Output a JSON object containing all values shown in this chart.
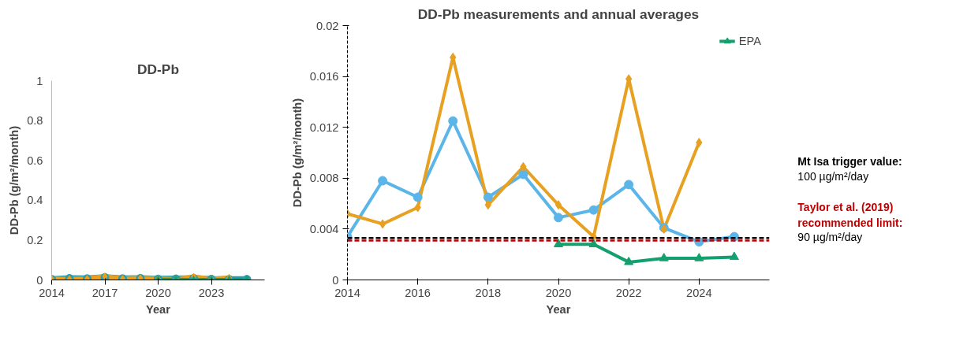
{
  "chart_data": [
    {
      "type": "line",
      "title": "DD-Pb",
      "xlabel": "Year",
      "ylabel": "DD-Pb (g/m²/month)",
      "xlim": [
        2014,
        2026
      ],
      "xticks": [
        2014,
        2017,
        2020,
        2023
      ],
      "ylim": [
        0,
        1
      ],
      "yticks": [
        0,
        0.2,
        0.4,
        0.6,
        0.8,
        1
      ],
      "grid": false,
      "legend": false,
      "series": [
        {
          "color": "#2a9bb0",
          "marker": "circle",
          "x": [
            2014,
            2015,
            2016,
            2017,
            2018,
            2019,
            2020,
            2021,
            2022,
            2023,
            2024,
            2025
          ],
          "values": [
            0.0034,
            0.0078,
            0.0065,
            0.0125,
            0.0065,
            0.0083,
            0.0049,
            0.0055,
            0.0075,
            0.0041,
            0.003,
            0.0034
          ]
        },
        {
          "color": "#e8a021",
          "marker": "diamond",
          "x": [
            2014,
            2015,
            2016,
            2017,
            2018,
            2019,
            2020,
            2021,
            2022,
            2023,
            2024
          ],
          "values": [
            0.0052,
            0.0044,
            0.0057,
            0.0175,
            0.0059,
            0.0089,
            0.0059,
            0.0034,
            0.0158,
            0.004,
            0.0108
          ]
        },
        {
          "color": "#14a06e",
          "marker": "triangle",
          "x": [
            2020,
            2021,
            2022,
            2023,
            2024,
            2025
          ],
          "values": [
            0.0028,
            0.0028,
            0.0014,
            0.0017,
            0.0017,
            0.0018
          ]
        }
      ]
    },
    {
      "type": "line",
      "title": "DD-Pb measurements and annual averages",
      "xlabel": "Year",
      "ylabel": "DD-Pb (g/m²/month)",
      "xlim": [
        2014,
        2026
      ],
      "xticks": [
        2014,
        2016,
        2018,
        2020,
        2022,
        2024
      ],
      "ylim": [
        0,
        0.02
      ],
      "yticks": [
        0,
        0.004,
        0.008,
        0.012,
        0.016,
        0.02
      ],
      "grid": false,
      "legend": "top right",
      "series": [
        {
          "color": "#5bb5e8",
          "marker": "circle",
          "x": [
            2014,
            2015,
            2016,
            2017,
            2018,
            2019,
            2020,
            2021,
            2022,
            2023,
            2024,
            2025
          ],
          "values": [
            0.0034,
            0.0078,
            0.0065,
            0.0125,
            0.0065,
            0.0083,
            0.0049,
            0.0055,
            0.0075,
            0.0041,
            0.003,
            0.0034
          ]
        },
        {
          "color": "#e8a021",
          "marker": "diamond",
          "x": [
            2014,
            2015,
            2016,
            2017,
            2018,
            2019,
            2020,
            2021,
            2022,
            2023,
            2024
          ],
          "values": [
            0.0052,
            0.0044,
            0.0057,
            0.0175,
            0.0059,
            0.0089,
            0.0059,
            0.0034,
            0.0158,
            0.004,
            0.0108
          ]
        },
        {
          "color": "#14a06e",
          "marker": "triangle",
          "name": "EPA",
          "x": [
            2020,
            2021,
            2022,
            2023,
            2024,
            2025
          ],
          "values": [
            0.0028,
            0.0028,
            0.0014,
            0.0017,
            0.0017,
            0.0018
          ]
        }
      ],
      "ref_lines": [
        {
          "axis": "y",
          "value": 0.0033,
          "label": "Mt Isa trigger value:",
          "color": "#000000",
          "line_style": "dashed"
        },
        {
          "axis": "y",
          "value": 0.0031,
          "label": "Taylor et al. (2019) recommended limit:",
          "color": "#c00000",
          "line_style": "dashed"
        }
      ],
      "annotations": [
        "100 µg/m²/day",
        "90 µg/m²/day"
      ]
    }
  ]
}
